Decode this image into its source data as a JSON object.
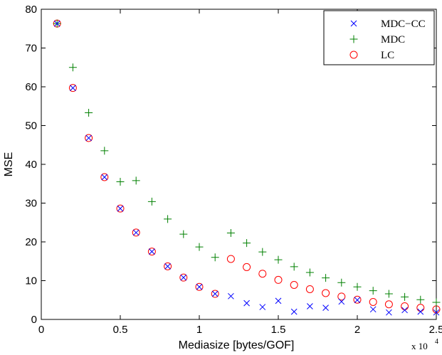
{
  "chart_data": {
    "type": "scatter",
    "title": "",
    "xlabel": "Mediasize [bytes/GOF]",
    "ylabel": "MSE",
    "x_exponent_label": "x 10",
    "x_exponent_power": "4",
    "xlim": [
      0,
      25000
    ],
    "ylim": [
      0,
      80
    ],
    "xtick_values": [
      0,
      5000,
      10000,
      15000,
      20000,
      25000
    ],
    "xtick_labels": [
      "0",
      "0.5",
      "1",
      "1.5",
      "2",
      "2.5"
    ],
    "ytick_values": [
      0,
      10,
      20,
      30,
      40,
      50,
      60,
      70,
      80
    ],
    "ytick_labels": [
      "0",
      "10",
      "20",
      "30",
      "40",
      "50",
      "60",
      "70",
      "80"
    ],
    "grid": false,
    "legend_position": "top-right",
    "series": [
      {
        "name": "MDC−CC",
        "marker": "x",
        "color": "#0000ff",
        "x": [
          1000,
          2000,
          3000,
          4000,
          5000,
          6000,
          7000,
          8000,
          9000,
          10000,
          11000,
          12000,
          13000,
          14000,
          15000,
          16000,
          17000,
          18000,
          19000,
          20000,
          21000,
          22000,
          23000,
          24000,
          25000
        ],
        "y": [
          76.3,
          59.7,
          46.8,
          36.7,
          28.6,
          22.4,
          17.5,
          13.7,
          10.8,
          8.4,
          6.6,
          6.0,
          4.2,
          3.2,
          4.8,
          2.0,
          3.4,
          3.0,
          4.6,
          5.0,
          2.6,
          1.8,
          2.4,
          2.0,
          1.8
        ]
      },
      {
        "name": "MDC",
        "marker": "+",
        "color": "#008000",
        "x": [
          1000,
          2000,
          3000,
          4000,
          5000,
          6000,
          7000,
          8000,
          9000,
          10000,
          11000,
          12000,
          13000,
          14000,
          15000,
          16000,
          17000,
          18000,
          19000,
          20000,
          21000,
          22000,
          23000,
          24000,
          25000
        ],
        "y": [
          76.3,
          65.0,
          53.3,
          43.5,
          35.5,
          35.8,
          30.4,
          25.9,
          22.0,
          18.7,
          16.0,
          22.3,
          19.7,
          17.4,
          15.4,
          13.6,
          12.1,
          10.7,
          9.5,
          8.4,
          7.4,
          6.6,
          5.8,
          5.1,
          4.4
        ]
      },
      {
        "name": "LC",
        "marker": "o",
        "color": "#ff0000",
        "x": [
          1000,
          2000,
          3000,
          4000,
          5000,
          6000,
          7000,
          8000,
          9000,
          10000,
          11000,
          12000,
          13000,
          14000,
          15000,
          16000,
          17000,
          18000,
          19000,
          20000,
          21000,
          22000,
          23000,
          24000,
          25000
        ],
        "y": [
          76.3,
          59.7,
          46.8,
          36.7,
          28.6,
          22.4,
          17.5,
          13.7,
          10.8,
          8.4,
          6.6,
          15.6,
          13.5,
          11.8,
          10.2,
          8.9,
          7.8,
          6.8,
          5.9,
          5.1,
          4.5,
          3.9,
          3.4,
          3.0,
          2.6
        ]
      }
    ]
  }
}
